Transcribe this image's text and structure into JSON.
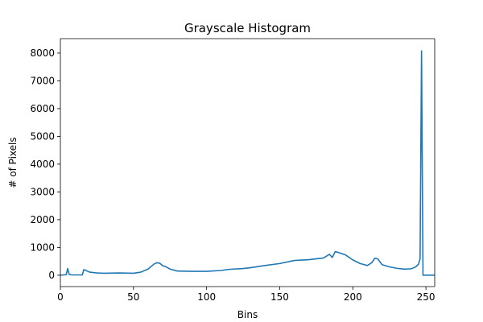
{
  "chart_data": {
    "type": "line",
    "title": "Grayscale Histogram",
    "xlabel": "Bins",
    "ylabel": "# of Pixels",
    "xlim": [
      0,
      256
    ],
    "ylim": [
      -410,
      8520
    ],
    "x_ticks": [
      0,
      50,
      100,
      150,
      200,
      250
    ],
    "y_ticks": [
      0,
      1000,
      2000,
      3000,
      4000,
      5000,
      6000,
      7000,
      8000
    ],
    "grid": false,
    "legend": "none",
    "series": [
      {
        "color": "#1f77b4",
        "points": [
          [
            0,
            0
          ],
          [
            4,
            20
          ],
          [
            5,
            240
          ],
          [
            6,
            30
          ],
          [
            8,
            10
          ],
          [
            15,
            10
          ],
          [
            16,
            200
          ],
          [
            17,
            180
          ],
          [
            20,
            110
          ],
          [
            25,
            80
          ],
          [
            30,
            70
          ],
          [
            40,
            80
          ],
          [
            50,
            70
          ],
          [
            55,
            110
          ],
          [
            60,
            220
          ],
          [
            64,
            400
          ],
          [
            66,
            450
          ],
          [
            68,
            430
          ],
          [
            70,
            340
          ],
          [
            72,
            310
          ],
          [
            75,
            220
          ],
          [
            80,
            150
          ],
          [
            90,
            140
          ],
          [
            100,
            140
          ],
          [
            110,
            170
          ],
          [
            115,
            210
          ],
          [
            125,
            240
          ],
          [
            130,
            270
          ],
          [
            140,
            350
          ],
          [
            150,
            420
          ],
          [
            160,
            530
          ],
          [
            170,
            560
          ],
          [
            180,
            620
          ],
          [
            184,
            750
          ],
          [
            186,
            640
          ],
          [
            188,
            850
          ],
          [
            190,
            820
          ],
          [
            195,
            730
          ],
          [
            200,
            550
          ],
          [
            205,
            420
          ],
          [
            210,
            350
          ],
          [
            213,
            450
          ],
          [
            215,
            610
          ],
          [
            217,
            590
          ],
          [
            220,
            380
          ],
          [
            225,
            300
          ],
          [
            230,
            250
          ],
          [
            235,
            220
          ],
          [
            240,
            230
          ],
          [
            243,
            300
          ],
          [
            245,
            400
          ],
          [
            246,
            600
          ],
          [
            247,
            8080
          ],
          [
            248,
            0
          ],
          [
            256,
            0
          ]
        ]
      }
    ]
  }
}
